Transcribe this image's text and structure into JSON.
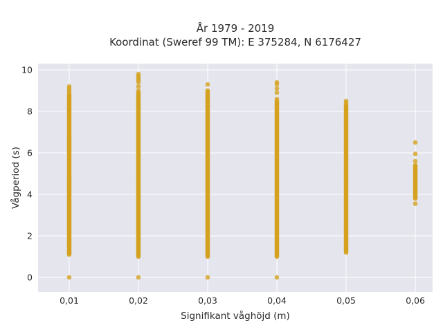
{
  "chart_data": {
    "type": "scatter",
    "title_line1": "År 1979 - 2019",
    "title_line2": "Koordinat (Sweref 99 TM): E 375284, N 6176427",
    "xlabel": "Signifikant våghöjd (m)",
    "ylabel": "Vågperiod (s)",
    "xlim": [
      0.0055,
      0.0625
    ],
    "ylim": [
      -0.7,
      10.3
    ],
    "x_ticks": [
      0.01,
      0.02,
      0.03,
      0.04,
      0.05,
      0.06
    ],
    "x_tick_labels": [
      "0,01",
      "0,02",
      "0,03",
      "0,04",
      "0,05",
      "0,06"
    ],
    "y_ticks": [
      0,
      2,
      4,
      6,
      8,
      10
    ],
    "y_tick_labels": [
      "0",
      "2",
      "4",
      "6",
      "8",
      "10"
    ],
    "grid": true,
    "marker_color": "#d4a21f",
    "plot_background": "#e5e5ee",
    "columns": [
      {
        "x": 0.01,
        "dense_ranges": [
          [
            1.1,
            8.8
          ]
        ],
        "points": [
          0,
          1.2,
          1.5,
          1.9,
          2.3,
          2.8,
          3.1,
          3.4,
          4.3,
          4.8,
          6.1,
          6.6,
          8.9,
          9.0,
          9.1,
          9.2
        ]
      },
      {
        "x": 0.02,
        "dense_ranges": [
          [
            1.0,
            8.9
          ]
        ],
        "points": [
          0,
          9.0,
          9.2,
          9.4,
          9.5,
          9.6,
          9.7,
          9.8
        ]
      },
      {
        "x": 0.03,
        "dense_ranges": [
          [
            1.0,
            9.0
          ]
        ],
        "points": [
          0,
          9.3
        ]
      },
      {
        "x": 0.04,
        "dense_ranges": [
          [
            1.0,
            8.5
          ]
        ],
        "points": [
          0,
          8.6,
          8.9,
          9.1,
          9.3,
          9.4
        ]
      },
      {
        "x": 0.05,
        "dense_ranges": [
          [
            1.2,
            8.3
          ]
        ],
        "points": [
          8.4,
          8.5
        ]
      },
      {
        "x": 0.06,
        "dense_ranges": [
          [
            3.8,
            5.4
          ]
        ],
        "points": [
          3.55,
          5.6,
          5.95,
          6.5
        ]
      }
    ]
  }
}
